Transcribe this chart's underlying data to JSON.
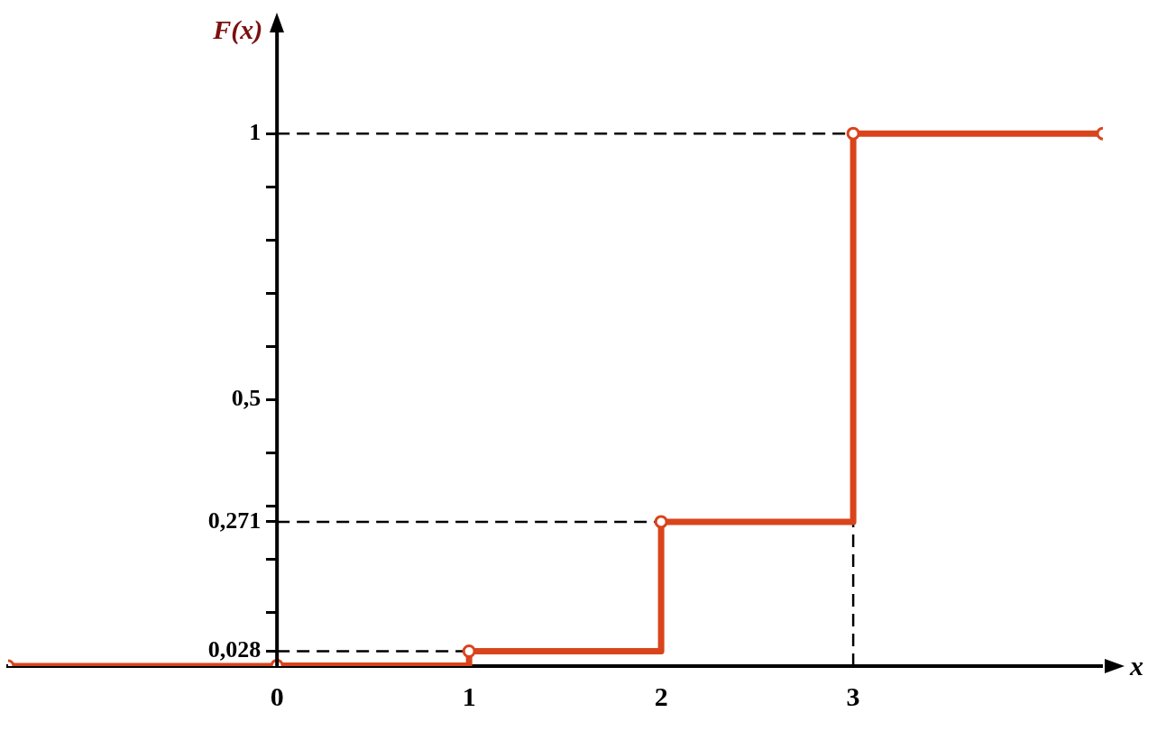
{
  "chart_data": {
    "type": "step",
    "xlabel": "x",
    "ylabel": "F(x)",
    "xlim": [
      -1.4,
      4.3
    ],
    "ylim": [
      0,
      1.2
    ],
    "xticks": [
      0,
      1,
      2,
      3
    ],
    "yticks": [
      {
        "value": 0.028,
        "label": "0,028"
      },
      {
        "value": 0.1,
        "label": null
      },
      {
        "value": 0.2,
        "label": null
      },
      {
        "value": 0.271,
        "label": "0,271"
      },
      {
        "value": 0.3,
        "label": null
      },
      {
        "value": 0.4,
        "label": null
      },
      {
        "value": 0.5,
        "label": "0,5"
      },
      {
        "value": 0.6,
        "label": null
      },
      {
        "value": 0.7,
        "label": null
      },
      {
        "value": 0.8,
        "label": null
      },
      {
        "value": 0.9,
        "label": null
      },
      {
        "value": 1,
        "label": "1"
      }
    ],
    "x": [
      -1.4,
      0,
      1,
      2,
      3,
      4.3
    ],
    "series": [
      {
        "color": "#d9441c",
        "values": [
          0,
          0.001,
          0.028,
          0.271,
          1,
          1
        ]
      }
    ],
    "marker": "circle",
    "grid": false,
    "legend": false,
    "ref_lines": [
      {
        "axis": "y",
        "value": 1,
        "color": "#000000",
        "line_style": "dashed"
      },
      {
        "axis": "y",
        "value": 0.271,
        "color": "#000000",
        "line_style": "dashed"
      },
      {
        "axis": "y",
        "value": 0.028,
        "color": "#000000",
        "line_style": "dashed"
      },
      {
        "axis": "x",
        "value": 3,
        "color": "#000000",
        "line_style": "dashed"
      }
    ]
  }
}
